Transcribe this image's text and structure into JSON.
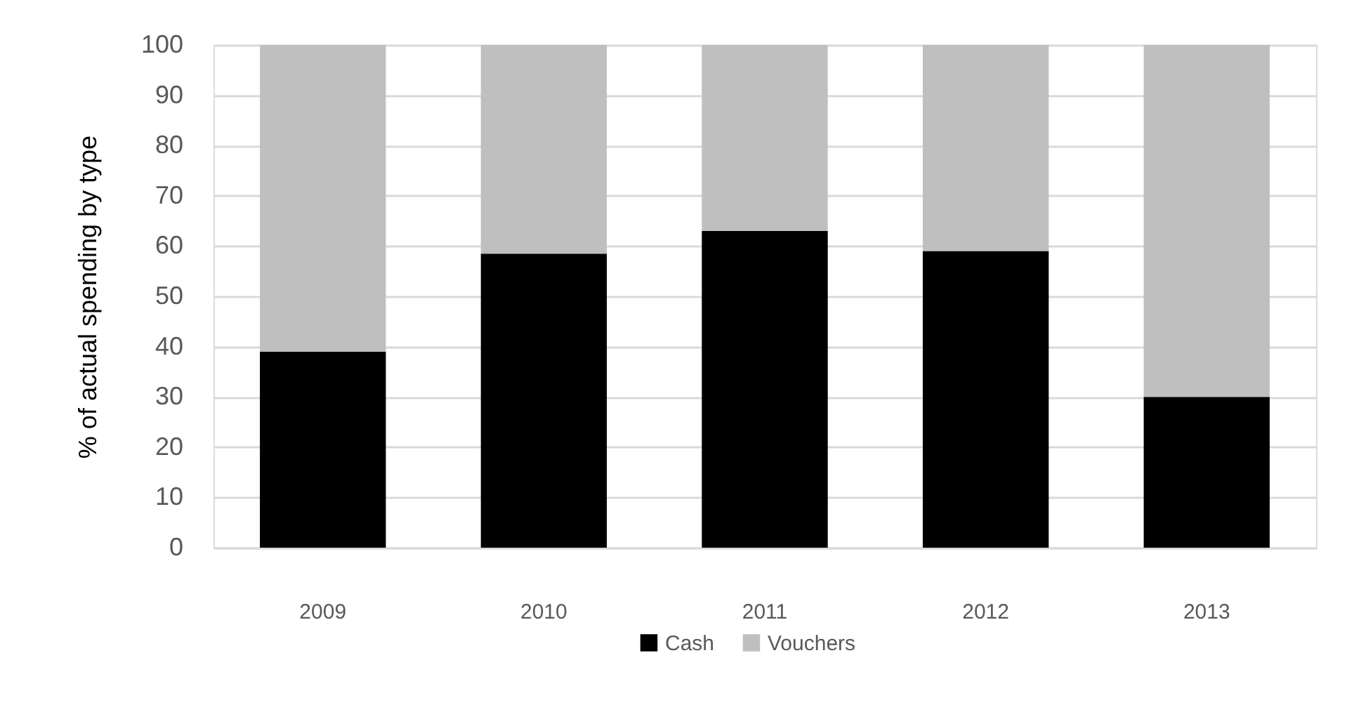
{
  "chart_data": {
    "type": "bar",
    "ylabel": "% of actual spending by type",
    "categories": [
      "2009",
      "2010",
      "2011",
      "2012",
      "2013"
    ],
    "stacked": true,
    "series": [
      {
        "name": "Cash",
        "color": "#000000",
        "values": [
          39,
          58.5,
          63,
          59,
          30
        ]
      },
      {
        "name": "Vouchers",
        "color": "#bfbfbf",
        "values": [
          61,
          41.5,
          37,
          41,
          70
        ]
      }
    ],
    "ylim": [
      0,
      100
    ],
    "yticks": [
      0,
      10,
      20,
      30,
      40,
      50,
      60,
      70,
      80,
      90,
      100
    ],
    "grid": "y",
    "legend": "bottom"
  }
}
